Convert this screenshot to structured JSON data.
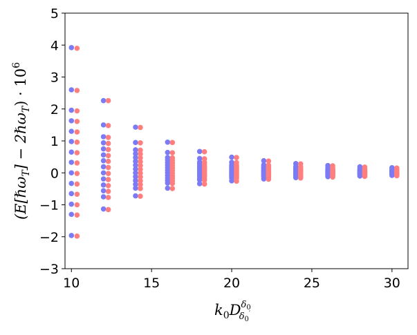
{
  "chart_data": {
    "type": "scatter",
    "xlabel_parts": [
      "k",
      "0",
      "D",
      "δ",
      "0",
      "δ",
      "0",
      "′"
    ],
    "ylabel_parts": [
      "(E[ℏω",
      "T",
      "] − 2ℏω",
      "T",
      ") · 10",
      "6"
    ],
    "xlim": [
      9.6,
      31.0
    ],
    "ylim": [
      -3,
      5
    ],
    "xticks": [
      10,
      15,
      20,
      25,
      30
    ],
    "yticks": [
      -3,
      -2,
      -1,
      0,
      1,
      2,
      3,
      4,
      5
    ],
    "grid": false,
    "colors": {
      "series_a": "#7b7bf5",
      "series_b": "#ff7f7f"
    },
    "series": [
      {
        "points": [
          {
            "x": 10.0,
            "ys": [
              3.92,
              2.6,
              1.96,
              1.63,
              1.3,
              0.98,
              0.65,
              0.33,
              0.0,
              -0.33,
              -0.65,
              -0.98,
              -1.3,
              -1.96
            ]
          },
          {
            "x": 12.0,
            "ys": [
              2.26,
              1.5,
              1.13,
              0.94,
              0.75,
              0.56,
              0.38,
              0.19,
              0.0,
              -0.19,
              -0.38,
              -0.56,
              -0.75,
              -1.13
            ]
          },
          {
            "x": 14.0,
            "ys": [
              1.43,
              0.95,
              0.72,
              0.6,
              0.48,
              0.36,
              0.24,
              0.12,
              0.0,
              -0.12,
              -0.24,
              -0.36,
              -0.48,
              -0.72
            ]
          },
          {
            "x": 16.0,
            "ys": [
              0.96,
              0.64,
              0.48,
              0.4,
              0.32,
              0.24,
              0.16,
              0.08,
              0.0,
              -0.08,
              -0.16,
              -0.24,
              -0.32,
              -0.48
            ]
          },
          {
            "x": 18.0,
            "ys": [
              0.67,
              0.45,
              0.34,
              0.28,
              0.22,
              0.17,
              0.11,
              0.06,
              0.0,
              -0.06,
              -0.11,
              -0.17,
              -0.22,
              -0.34
            ]
          },
          {
            "x": 20.0,
            "ys": [
              0.49,
              0.33,
              0.25,
              0.2,
              0.16,
              0.12,
              0.08,
              0.04,
              0.0,
              -0.04,
              -0.08,
              -0.12,
              -0.16,
              -0.25
            ]
          },
          {
            "x": 22.0,
            "ys": [
              0.38,
              0.25,
              0.19,
              0.16,
              0.13,
              0.09,
              0.06,
              0.03,
              0.0,
              -0.03,
              -0.06,
              -0.09,
              -0.13,
              -0.19
            ]
          },
          {
            "x": 24.0,
            "ys": [
              0.29,
              0.2,
              0.15,
              0.12,
              0.1,
              0.07,
              0.05,
              0.02,
              0.0,
              -0.02,
              -0.05,
              -0.07,
              -0.1,
              -0.15
            ]
          },
          {
            "x": 26.0,
            "ys": [
              0.23,
              0.16,
              0.12,
              0.1,
              0.08,
              0.06,
              0.04,
              0.02,
              0.0,
              -0.02,
              -0.04,
              -0.06,
              -0.08,
              -0.12
            ]
          },
          {
            "x": 28.0,
            "ys": [
              0.19,
              0.13,
              0.1,
              0.08,
              0.06,
              0.05,
              0.03,
              0.02,
              0.0,
              -0.02,
              -0.03,
              -0.05,
              -0.06,
              -0.1
            ]
          },
          {
            "x": 30.0,
            "ys": [
              0.16,
              0.11,
              0.08,
              0.07,
              0.05,
              0.04,
              0.03,
              0.01,
              0.0,
              -0.01,
              -0.03,
              -0.04,
              -0.05,
              -0.08
            ]
          }
        ]
      },
      {
        "points": [
          {
            "x": 10.35,
            "ys": [
              3.9,
              2.58,
              1.94,
              1.61,
              1.28,
              0.96,
              0.63,
              0.31,
              -0.02,
              -0.35,
              -0.67,
              -1.0,
              -1.32,
              -1.98
            ]
          },
          {
            "x": 12.3,
            "ys": [
              2.26,
              1.48,
              1.11,
              0.92,
              0.73,
              0.54,
              0.36,
              0.17,
              -0.02,
              -0.21,
              -0.4,
              -0.58,
              -0.77,
              -1.15
            ]
          },
          {
            "x": 14.3,
            "ys": [
              1.42,
              0.94,
              0.71,
              0.59,
              0.47,
              0.35,
              0.23,
              0.11,
              -0.01,
              -0.13,
              -0.25,
              -0.37,
              -0.49,
              -0.73
            ]
          },
          {
            "x": 16.3,
            "ys": [
              0.95,
              0.63,
              0.47,
              0.39,
              0.31,
              0.23,
              0.15,
              0.07,
              -0.01,
              -0.09,
              -0.17,
              -0.25,
              -0.33,
              -0.49
            ]
          },
          {
            "x": 18.3,
            "ys": [
              0.66,
              0.44,
              0.33,
              0.27,
              0.21,
              0.16,
              0.1,
              0.05,
              -0.01,
              -0.07,
              -0.12,
              -0.18,
              -0.23,
              -0.35
            ]
          },
          {
            "x": 20.3,
            "ys": [
              0.48,
              0.32,
              0.24,
              0.19,
              0.15,
              0.11,
              0.07,
              0.03,
              -0.01,
              -0.05,
              -0.09,
              -0.13,
              -0.17,
              -0.26
            ]
          },
          {
            "x": 22.3,
            "ys": [
              0.37,
              0.24,
              0.18,
              0.15,
              0.12,
              0.08,
              0.05,
              0.02,
              -0.01,
              -0.04,
              -0.07,
              -0.1,
              -0.14,
              -0.2
            ]
          },
          {
            "x": 24.3,
            "ys": [
              0.28,
              0.19,
              0.14,
              0.11,
              0.09,
              0.06,
              0.04,
              0.01,
              -0.01,
              -0.03,
              -0.06,
              -0.08,
              -0.11,
              -0.16
            ]
          },
          {
            "x": 26.3,
            "ys": [
              0.22,
              0.15,
              0.11,
              0.09,
              0.07,
              0.05,
              0.03,
              0.01,
              -0.01,
              -0.03,
              -0.05,
              -0.07,
              -0.09,
              -0.13
            ]
          },
          {
            "x": 28.3,
            "ys": [
              0.18,
              0.12,
              0.09,
              0.07,
              0.05,
              0.04,
              0.02,
              0.01,
              -0.01,
              -0.03,
              -0.04,
              -0.06,
              -0.07,
              -0.11
            ]
          },
          {
            "x": 30.3,
            "ys": [
              0.15,
              0.1,
              0.07,
              0.06,
              0.04,
              0.03,
              0.02,
              0.0,
              -0.02,
              -0.02,
              -0.04,
              -0.05,
              -0.06,
              -0.09
            ]
          }
        ]
      }
    ]
  }
}
